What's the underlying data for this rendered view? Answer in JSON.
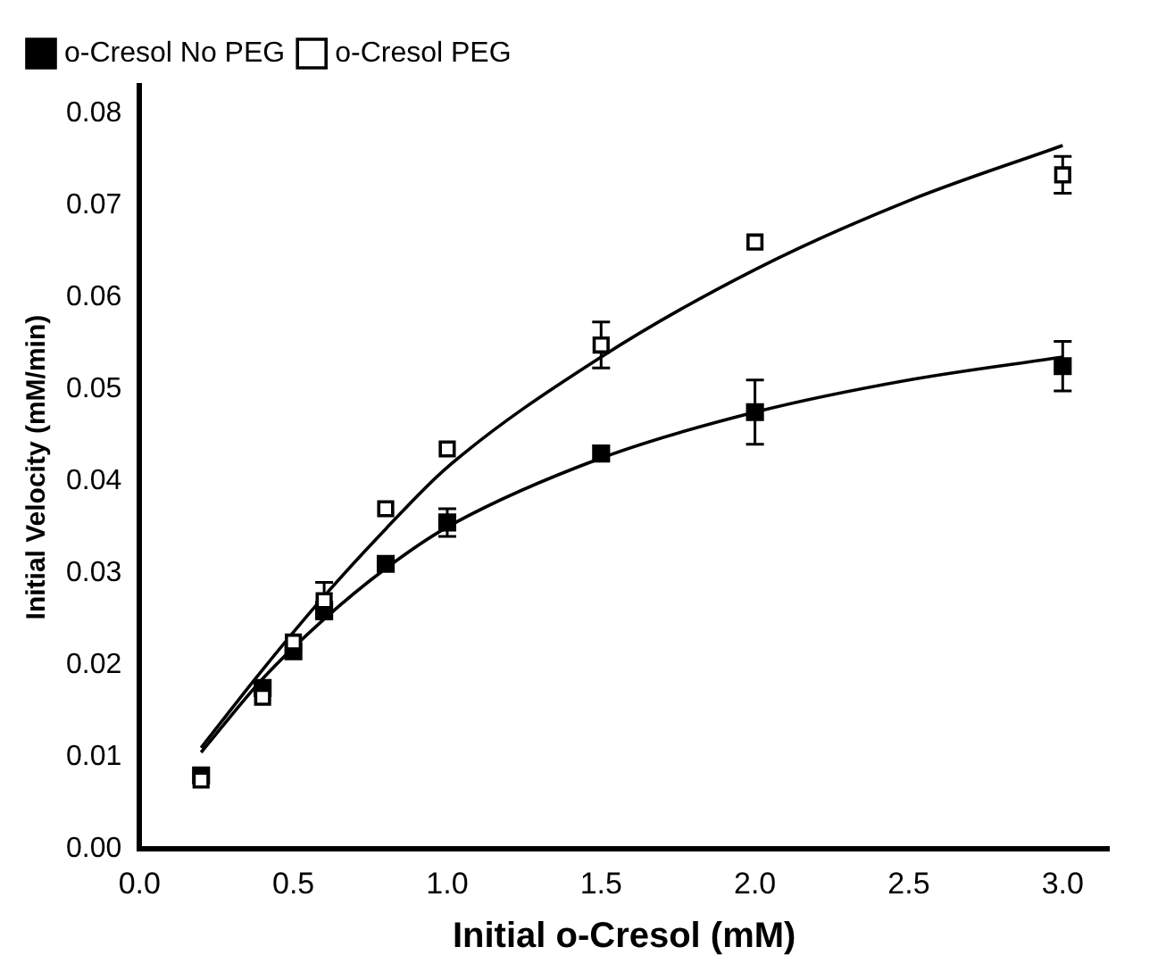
{
  "chart_data": {
    "type": "scatter",
    "xlabel": "Initial o-Cresol (mM)",
    "ylabel": "Initial Velocity (mM/min)",
    "x": [
      0.2,
      0.4,
      0.5,
      0.6,
      0.8,
      1.0,
      1.5,
      2.0,
      3.0
    ],
    "series": [
      {
        "name": "o-Cresol No PEG",
        "color": "#000000",
        "marker": "square",
        "values": [
          0.008,
          0.0175,
          0.0215,
          0.026,
          0.031,
          0.0355,
          0.043,
          0.0475,
          0.0525
        ],
        "errors": [
          null,
          null,
          null,
          null,
          null,
          0.0015,
          null,
          0.0035,
          0.0027
        ]
      },
      {
        "name": "o-Cresol PEG",
        "color": "#ffffff",
        "marker": "square",
        "values": [
          0.0075,
          0.0165,
          0.0225,
          0.027,
          0.037,
          0.0435,
          0.0548,
          0.066,
          0.0733
        ],
        "errors": [
          null,
          null,
          null,
          0.002,
          null,
          null,
          0.0025,
          null,
          0.002
        ]
      },
      {
        "type": "line",
        "color": "#000000",
        "x": [
          0.2,
          0.4,
          0.6,
          0.8,
          1.0,
          1.5,
          2.0,
          2.5,
          3.0
        ],
        "values": [
          0.0105,
          0.0185,
          0.025,
          0.0305,
          0.035,
          0.0425,
          0.0475,
          0.051,
          0.0535
        ]
      },
      {
        "type": "line",
        "color": "#000000",
        "x": [
          0.2,
          0.4,
          0.6,
          0.8,
          1.0,
          1.5,
          2.0,
          2.5,
          3.0
        ],
        "values": [
          0.011,
          0.0195,
          0.0275,
          0.0348,
          0.0415,
          0.0535,
          0.063,
          0.0705,
          0.0765
        ]
      }
    ],
    "xlim": [
      0,
      3.15
    ],
    "xticks": [
      {
        "value": 0,
        "label": "0.0"
      },
      0.5,
      {
        "value": 1,
        "label": "1.0"
      },
      1.5,
      {
        "value": 2,
        "label": "2.0"
      },
      2.5,
      {
        "value": 3,
        "label": "3.0"
      }
    ],
    "ylim": [
      0,
      0.083
    ],
    "yticks": [
      {
        "value": 0,
        "label": "0.00"
      },
      0.01,
      0.02,
      0.03,
      0.04,
      0.05,
      0.06,
      0.07,
      0.08
    ],
    "grid": false,
    "legend": "top left"
  }
}
